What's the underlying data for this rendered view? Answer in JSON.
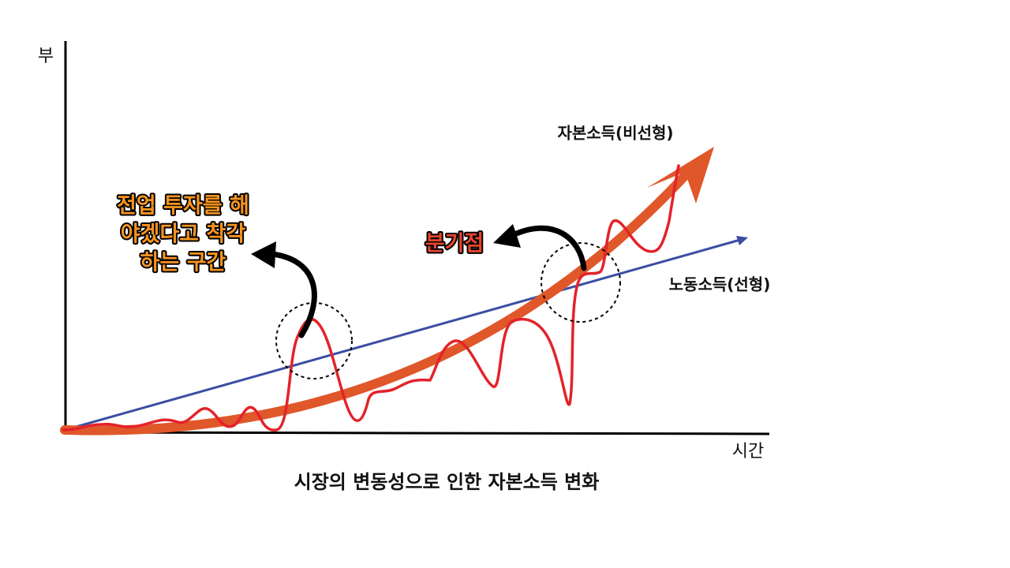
{
  "axes": {
    "y_label": "부",
    "x_label": "시간"
  },
  "curves": {
    "capital": "자본소득(비선형)",
    "labor": "노동소득(선형)"
  },
  "callouts": {
    "misjudgment": [
      "전업 투자를 해",
      "야겠다고 착각",
      "하는 구간"
    ],
    "crossover": "분기점"
  },
  "caption": "시장의 변동성으로 인한 자본소득 변화"
}
